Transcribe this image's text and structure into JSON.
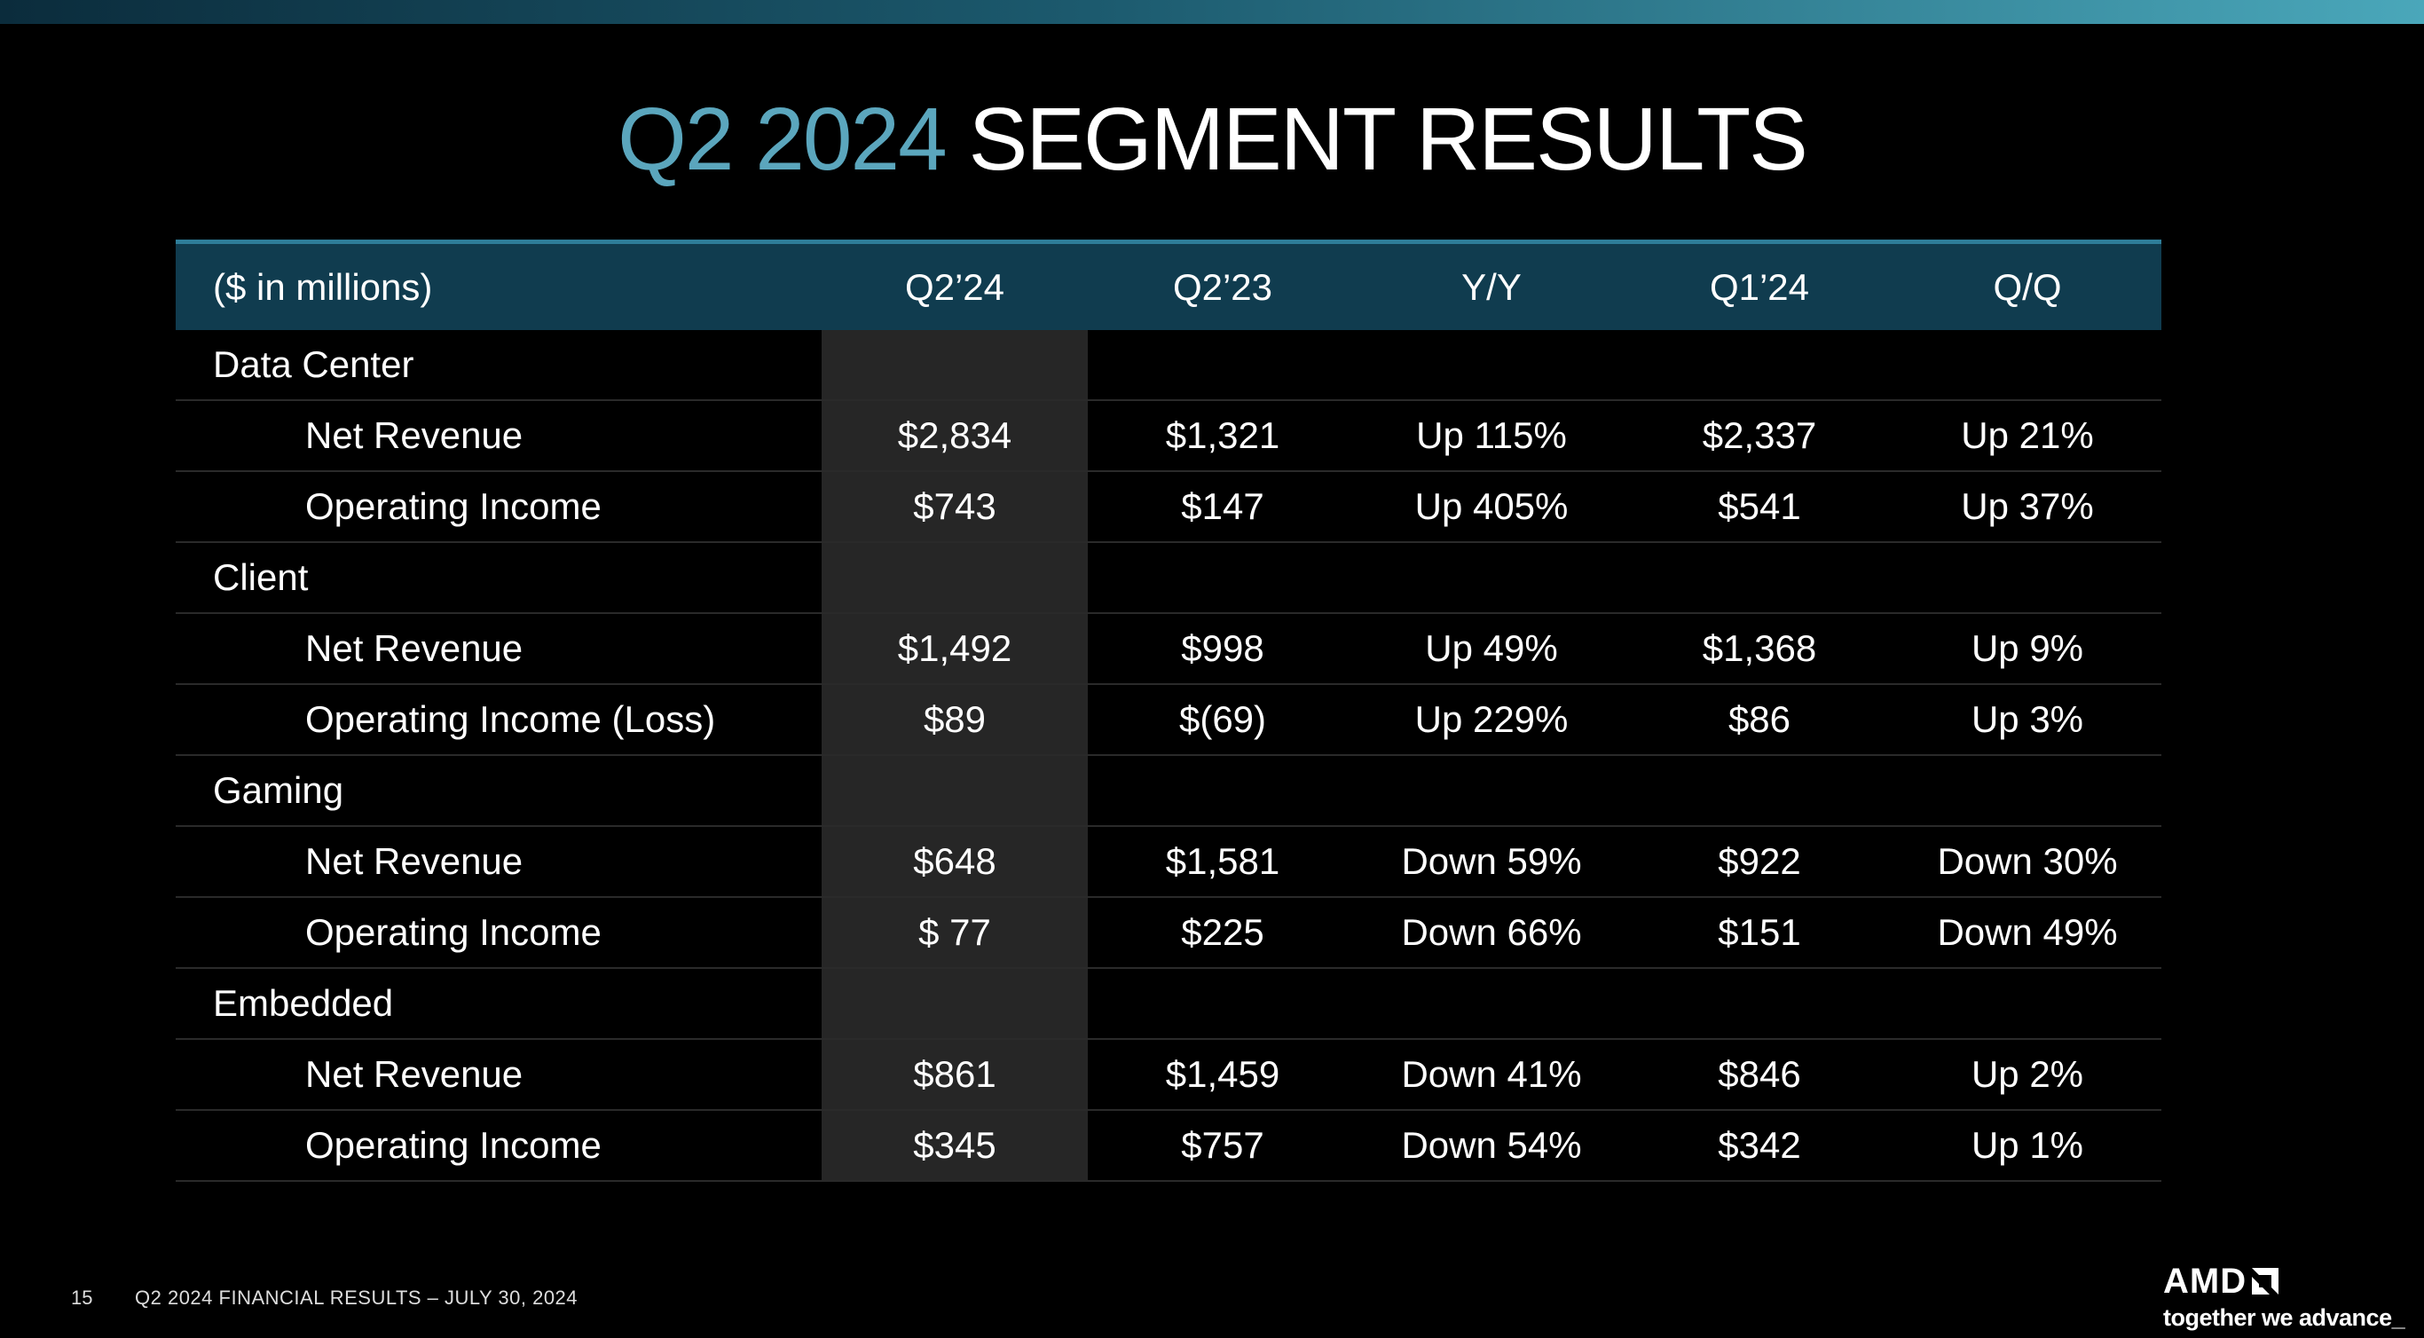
{
  "title": {
    "accent": "Q2 2024",
    "main": "SEGMENT RESULTS"
  },
  "table": {
    "headers": [
      "($ in millions)",
      "Q2’24",
      "Q2’23",
      "Y/Y",
      "Q1’24",
      "Q/Q"
    ],
    "rows": [
      {
        "type": "segment",
        "cells": [
          "Data Center",
          "",
          "",
          "",
          "",
          ""
        ]
      },
      {
        "type": "metric",
        "cells": [
          "Net Revenue",
          "$2,834",
          "$1,321",
          "Up 115%",
          "$2,337",
          "Up 21%"
        ]
      },
      {
        "type": "metric",
        "cells": [
          "Operating Income",
          "$743",
          "$147",
          "Up 405%",
          "$541",
          "Up 37%"
        ]
      },
      {
        "type": "segment",
        "cells": [
          "Client",
          "",
          "",
          "",
          "",
          ""
        ]
      },
      {
        "type": "metric",
        "cells": [
          "Net Revenue",
          "$1,492",
          "$998",
          "Up 49%",
          "$1,368",
          "Up 9%"
        ]
      },
      {
        "type": "metric",
        "cells": [
          "Operating Income (Loss)",
          "$89",
          "$(69)",
          "Up 229%",
          "$86",
          "Up 3%"
        ]
      },
      {
        "type": "segment",
        "cells": [
          "Gaming",
          "",
          "",
          "",
          "",
          ""
        ]
      },
      {
        "type": "metric",
        "cells": [
          "Net Revenue",
          "$648",
          "$1,581",
          "Down 59%",
          "$922",
          "Down 30%"
        ]
      },
      {
        "type": "metric",
        "cells": [
          "Operating Income",
          "$ 77",
          "$225",
          "Down 66%",
          "$151",
          "Down 49%"
        ]
      },
      {
        "type": "segment",
        "cells": [
          "Embedded",
          "",
          "",
          "",
          "",
          ""
        ]
      },
      {
        "type": "metric",
        "cells": [
          "Net Revenue",
          "$861",
          "$1,459",
          "Down 41%",
          "$846",
          "Up 2%"
        ]
      },
      {
        "type": "metric",
        "cells": [
          "Operating Income",
          "$345",
          "$757",
          "Down 54%",
          "$342",
          "Up 1%"
        ]
      }
    ]
  },
  "footer": {
    "page_number": "15",
    "text": "Q2 2024 FINANCIAL RESULTS – JULY 30, 2024"
  },
  "logo": {
    "brand": "AMD",
    "tagline": "together we advance_"
  },
  "colors": {
    "accent": "#5ba6bd",
    "header_bg": "#103c4f",
    "highlight_col": "#262626"
  }
}
